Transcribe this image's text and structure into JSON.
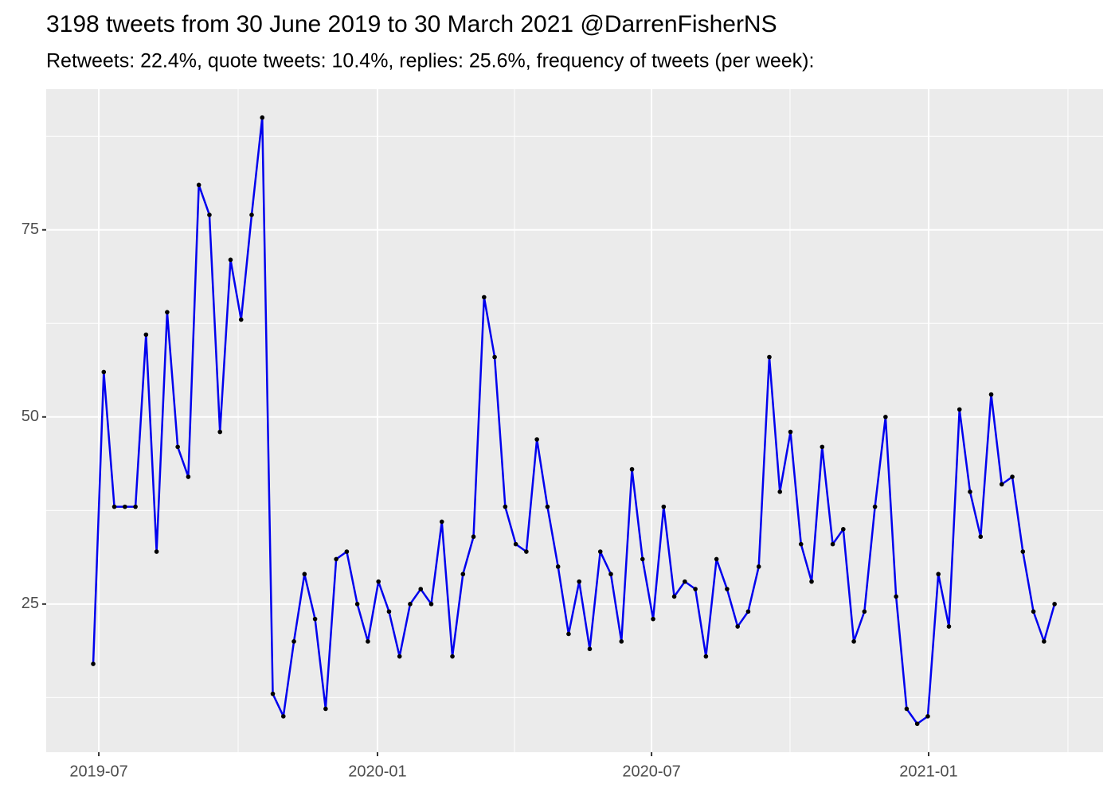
{
  "chart_data": {
    "type": "line",
    "title": "3198 tweets from 30 June 2019 to 30 March 2021 @DarrenFisherNS",
    "subtitle": "Retweets: 22.4%, quote tweets: 10.4%, replies: 25.6%, frequency of tweets (per week):",
    "values": [
      17,
      56,
      38,
      38,
      38,
      61,
      32,
      64,
      46,
      42,
      81,
      77,
      48,
      71,
      63,
      77,
      90,
      13,
      10,
      20,
      29,
      23,
      11,
      31,
      32,
      25,
      20,
      28,
      24,
      18,
      25,
      27,
      25,
      36,
      18,
      29,
      34,
      66,
      58,
      38,
      33,
      32,
      47,
      38,
      30,
      21,
      28,
      19,
      32,
      29,
      20,
      43,
      31,
      23,
      38,
      26,
      28,
      27,
      18,
      31,
      27,
      22,
      24,
      30,
      58,
      40,
      48,
      33,
      28,
      46,
      33,
      35,
      20,
      24,
      38,
      50,
      26,
      11,
      9,
      10,
      29,
      22,
      51,
      40,
      34,
      53,
      41,
      42,
      32,
      24,
      20,
      25
    ],
    "color": "#0000ee",
    "point_color": "#000000",
    "ylim": [
      5.2,
      93.8
    ],
    "yticks": [
      25,
      50,
      75
    ],
    "yminor": [
      12.5,
      37.5,
      62.5,
      87.5
    ],
    "xlim": [
      -4.45,
      95.59
    ],
    "xticks": [
      {
        "value": 0.53,
        "label": "2019-07"
      },
      {
        "value": 26.91,
        "label": "2020-01"
      },
      {
        "value": 52.85,
        "label": "2020-07"
      },
      {
        "value": 79.08,
        "label": "2021-01"
      }
    ],
    "xminor": [
      13.72,
      39.88,
      65.96,
      92.27
    ],
    "grid": true
  }
}
